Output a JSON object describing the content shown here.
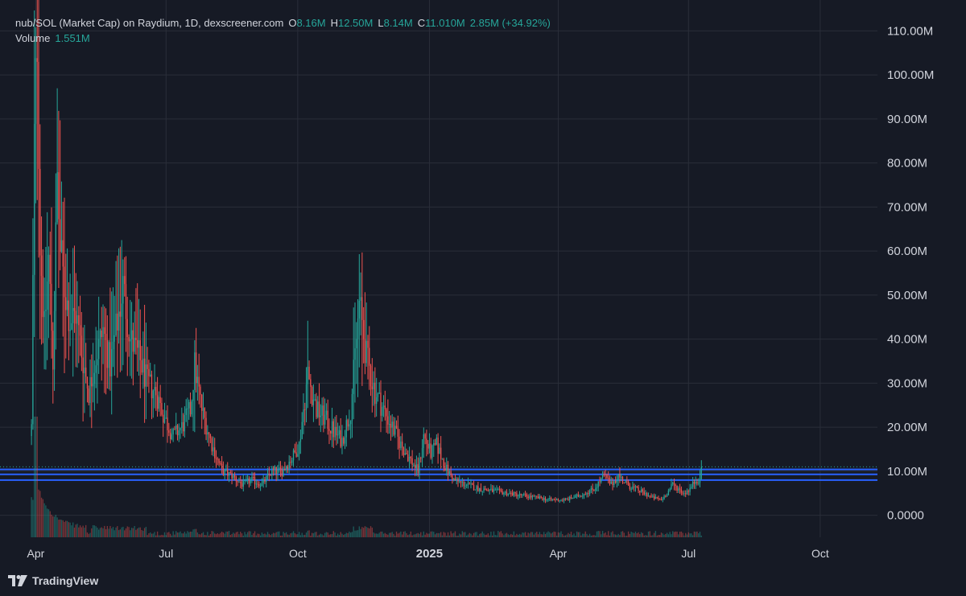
{
  "legend": {
    "title": "nub/SOL (Market Cap) on Raydium, 1D, dexscreener.com",
    "open_label": "O",
    "open": "8.16M",
    "high_label": "H",
    "high": "12.50M",
    "low_label": "L",
    "low": "8.14M",
    "close_label": "C",
    "close": "11.010M",
    "change": "2.85M (+34.92%)",
    "volume_label": "Volume",
    "volume": "1.551M"
  },
  "brand": {
    "name": "TradingView",
    "icon": "tradingview-logo-icon"
  },
  "colors": {
    "background": "#161a25",
    "up": "#26a69a",
    "down": "#ef5350",
    "grid": "#2a2e39",
    "level_line": "#2962ff",
    "text": "#d1d4dc"
  },
  "chart_data": {
    "type": "candlestick",
    "title": "",
    "xlabel": "",
    "ylabel": "",
    "y_unit": "Market Cap",
    "yticks": [
      "110.00M",
      "100.00M",
      "90.00M",
      "80.00M",
      "70.00M",
      "60.00M",
      "50.00M",
      "40.00M",
      "30.00M",
      "20.00M",
      "10.00M",
      "0.0000"
    ],
    "ytick_values": [
      110,
      100,
      90,
      80,
      70,
      60,
      50,
      40,
      30,
      20,
      10,
      0
    ],
    "ylim_millions": [
      -5,
      117
    ],
    "xticks": [
      "Apr",
      "Jul",
      "Oct",
      "2025",
      "Apr",
      "Jul",
      "Oct"
    ],
    "xlim_dates": [
      "2024-03-07",
      "2025-11-10"
    ],
    "xtick_dates": [
      "2024-04-01",
      "2024-07-01",
      "2024-10-01",
      "2025-01-01",
      "2025-04-01",
      "2025-07-01",
      "2025-10-01"
    ],
    "grid": true,
    "legend_position": "top-left",
    "horizontal_levels_millions": [
      8.0,
      9.3,
      10.4
    ],
    "last_price_millions": 11.01,
    "close_series_millions": [
      [
        "2024-03-29",
        20
      ],
      [
        "2024-03-31",
        85
      ],
      [
        "2024-04-02",
        110
      ],
      [
        "2024-04-04",
        62
      ],
      [
        "2024-04-07",
        42
      ],
      [
        "2024-04-10",
        58
      ],
      [
        "2024-04-13",
        35
      ],
      [
        "2024-04-16",
        76
      ],
      [
        "2024-04-18",
        60
      ],
      [
        "2024-04-21",
        52
      ],
      [
        "2024-04-25",
        44
      ],
      [
        "2024-04-29",
        46
      ],
      [
        "2024-05-03",
        37
      ],
      [
        "2024-05-08",
        28
      ],
      [
        "2024-05-13",
        36
      ],
      [
        "2024-05-18",
        42
      ],
      [
        "2024-05-23",
        34
      ],
      [
        "2024-05-28",
        44
      ],
      [
        "2024-06-01",
        52
      ],
      [
        "2024-06-06",
        40
      ],
      [
        "2024-06-12",
        36
      ],
      [
        "2024-06-18",
        30
      ],
      [
        "2024-06-24",
        28
      ],
      [
        "2024-06-30",
        22
      ],
      [
        "2024-07-06",
        18
      ],
      [
        "2024-07-12",
        20
      ],
      [
        "2024-07-18",
        24
      ],
      [
        "2024-07-21",
        34
      ],
      [
        "2024-07-26",
        24
      ],
      [
        "2024-08-02",
        16
      ],
      [
        "2024-08-09",
        10
      ],
      [
        "2024-08-16",
        9
      ],
      [
        "2024-08-23",
        7
      ],
      [
        "2024-08-30",
        8
      ],
      [
        "2024-09-06",
        7
      ],
      [
        "2024-09-13",
        10
      ],
      [
        "2024-09-20",
        10
      ],
      [
        "2024-09-27",
        13
      ],
      [
        "2024-10-02",
        16
      ],
      [
        "2024-10-08",
        32
      ],
      [
        "2024-10-14",
        24
      ],
      [
        "2024-10-20",
        22
      ],
      [
        "2024-10-26",
        19
      ],
      [
        "2024-11-01",
        17
      ],
      [
        "2024-11-07",
        24
      ],
      [
        "2024-11-13",
        48
      ],
      [
        "2024-11-18",
        36
      ],
      [
        "2024-11-24",
        28
      ],
      [
        "2024-11-30",
        24
      ],
      [
        "2024-12-06",
        20
      ],
      [
        "2024-12-12",
        16
      ],
      [
        "2024-12-18",
        13
      ],
      [
        "2024-12-24",
        10
      ],
      [
        "2024-12-28",
        18
      ],
      [
        "2025-01-02",
        14
      ],
      [
        "2025-01-06",
        16
      ],
      [
        "2025-01-12",
        11
      ],
      [
        "2025-01-18",
        8
      ],
      [
        "2025-01-26",
        7
      ],
      [
        "2025-02-05",
        6
      ],
      [
        "2025-02-15",
        5.5
      ],
      [
        "2025-02-25",
        5
      ],
      [
        "2025-03-07",
        4.5
      ],
      [
        "2025-03-17",
        4
      ],
      [
        "2025-03-27",
        3.5
      ],
      [
        "2025-04-06",
        3.5
      ],
      [
        "2025-04-16",
        4.5
      ],
      [
        "2025-04-26",
        6
      ],
      [
        "2025-05-03",
        9
      ],
      [
        "2025-05-08",
        7
      ],
      [
        "2025-05-13",
        9
      ],
      [
        "2025-05-19",
        7
      ],
      [
        "2025-05-25",
        6
      ],
      [
        "2025-05-31",
        5
      ],
      [
        "2025-06-06",
        4
      ],
      [
        "2025-06-12",
        3.5
      ],
      [
        "2025-06-16",
        5
      ],
      [
        "2025-06-20",
        7
      ],
      [
        "2025-06-24",
        6
      ],
      [
        "2025-06-28",
        5
      ],
      [
        "2025-07-02",
        6
      ],
      [
        "2025-07-06",
        8
      ],
      [
        "2025-07-09",
        8.16
      ],
      [
        "2025-07-10",
        11.01
      ]
    ],
    "volume_peak_date": "2024-04-01"
  }
}
